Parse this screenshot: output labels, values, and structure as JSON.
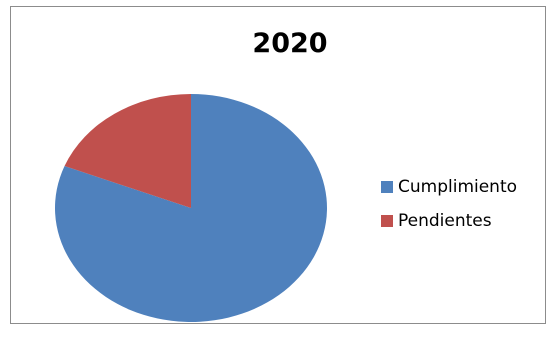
{
  "chart_data": {
    "type": "pie",
    "title": "2020",
    "slices": [
      {
        "label": "Cumplimiento",
        "value": 81,
        "color": "#4f81bd"
      },
      {
        "label": "Pendientes",
        "value": 19,
        "color": "#c0504d"
      }
    ],
    "legend_position": "right"
  }
}
